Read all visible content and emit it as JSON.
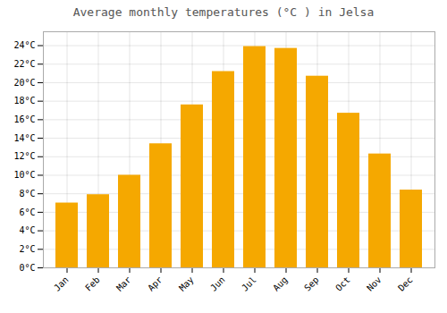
{
  "chart_data": {
    "type": "bar",
    "title": "Average monthly temperatures (°C ) in Jelsa",
    "categories": [
      "Jan",
      "Feb",
      "Mar",
      "Apr",
      "May",
      "Jun",
      "Jul",
      "Aug",
      "Sep",
      "Oct",
      "Nov",
      "Dec"
    ],
    "values": [
      7.0,
      7.9,
      10.0,
      13.4,
      17.6,
      21.2,
      23.9,
      23.7,
      20.7,
      16.7,
      12.3,
      8.4
    ],
    "color": "#F5A800",
    "ylim": [
      0,
      25.5
    ],
    "yticks": [
      {
        "value": 0,
        "label": "0°C"
      },
      {
        "value": 2,
        "label": "2°C"
      },
      {
        "value": 4,
        "label": "4°C"
      },
      {
        "value": 6,
        "label": "6°C"
      },
      {
        "value": 8,
        "label": "8°C"
      },
      {
        "value": 10,
        "label": "10°C"
      },
      {
        "value": 12,
        "label": "12°C"
      },
      {
        "value": 14,
        "label": "14°C"
      },
      {
        "value": 16,
        "label": "16°C"
      },
      {
        "value": 18,
        "label": "18°C"
      },
      {
        "value": 20,
        "label": "20°C"
      },
      {
        "value": 22,
        "label": "22°C"
      },
      {
        "value": 24,
        "label": "24°C"
      }
    ],
    "grid": true
  }
}
